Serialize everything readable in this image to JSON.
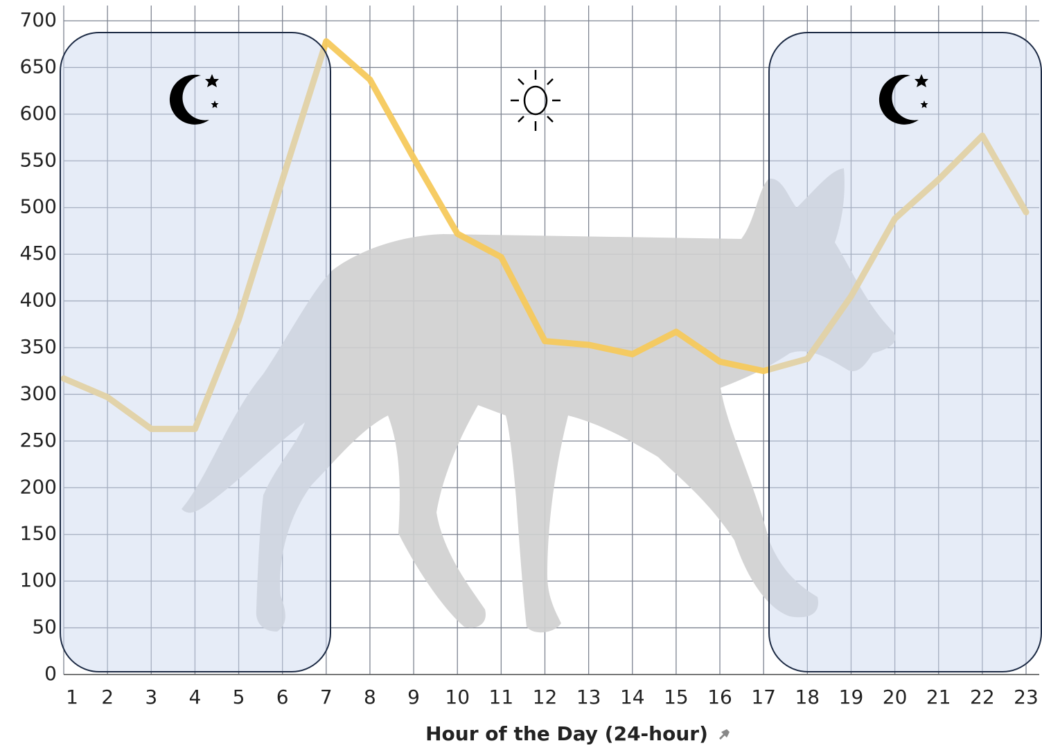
{
  "chart_data": {
    "type": "line",
    "x_label": "Hour of the Day (24-hour)",
    "x": [
      1,
      2,
      3,
      4,
      5,
      6,
      7,
      8,
      9,
      10,
      11,
      12,
      13,
      14,
      15,
      16,
      17,
      18,
      19,
      20,
      21,
      22,
      23
    ],
    "values": [
      317,
      297,
      263,
      263,
      380,
      530,
      678,
      637,
      553,
      472,
      447,
      357,
      353,
      343,
      367,
      335,
      325,
      338,
      405,
      488,
      530,
      577,
      495
    ],
    "color": "#f5c95c",
    "xlim": [
      1,
      23
    ],
    "xticks": [
      1,
      2,
      3,
      4,
      5,
      6,
      7,
      8,
      9,
      10,
      11,
      12,
      13,
      14,
      15,
      16,
      17,
      18,
      19,
      20,
      21,
      22,
      23
    ],
    "ylim": [
      0,
      700
    ],
    "yticks": [
      0,
      50,
      100,
      150,
      200,
      250,
      300,
      350,
      400,
      450,
      500,
      550,
      600,
      650,
      700
    ],
    "grid": true
  }
}
